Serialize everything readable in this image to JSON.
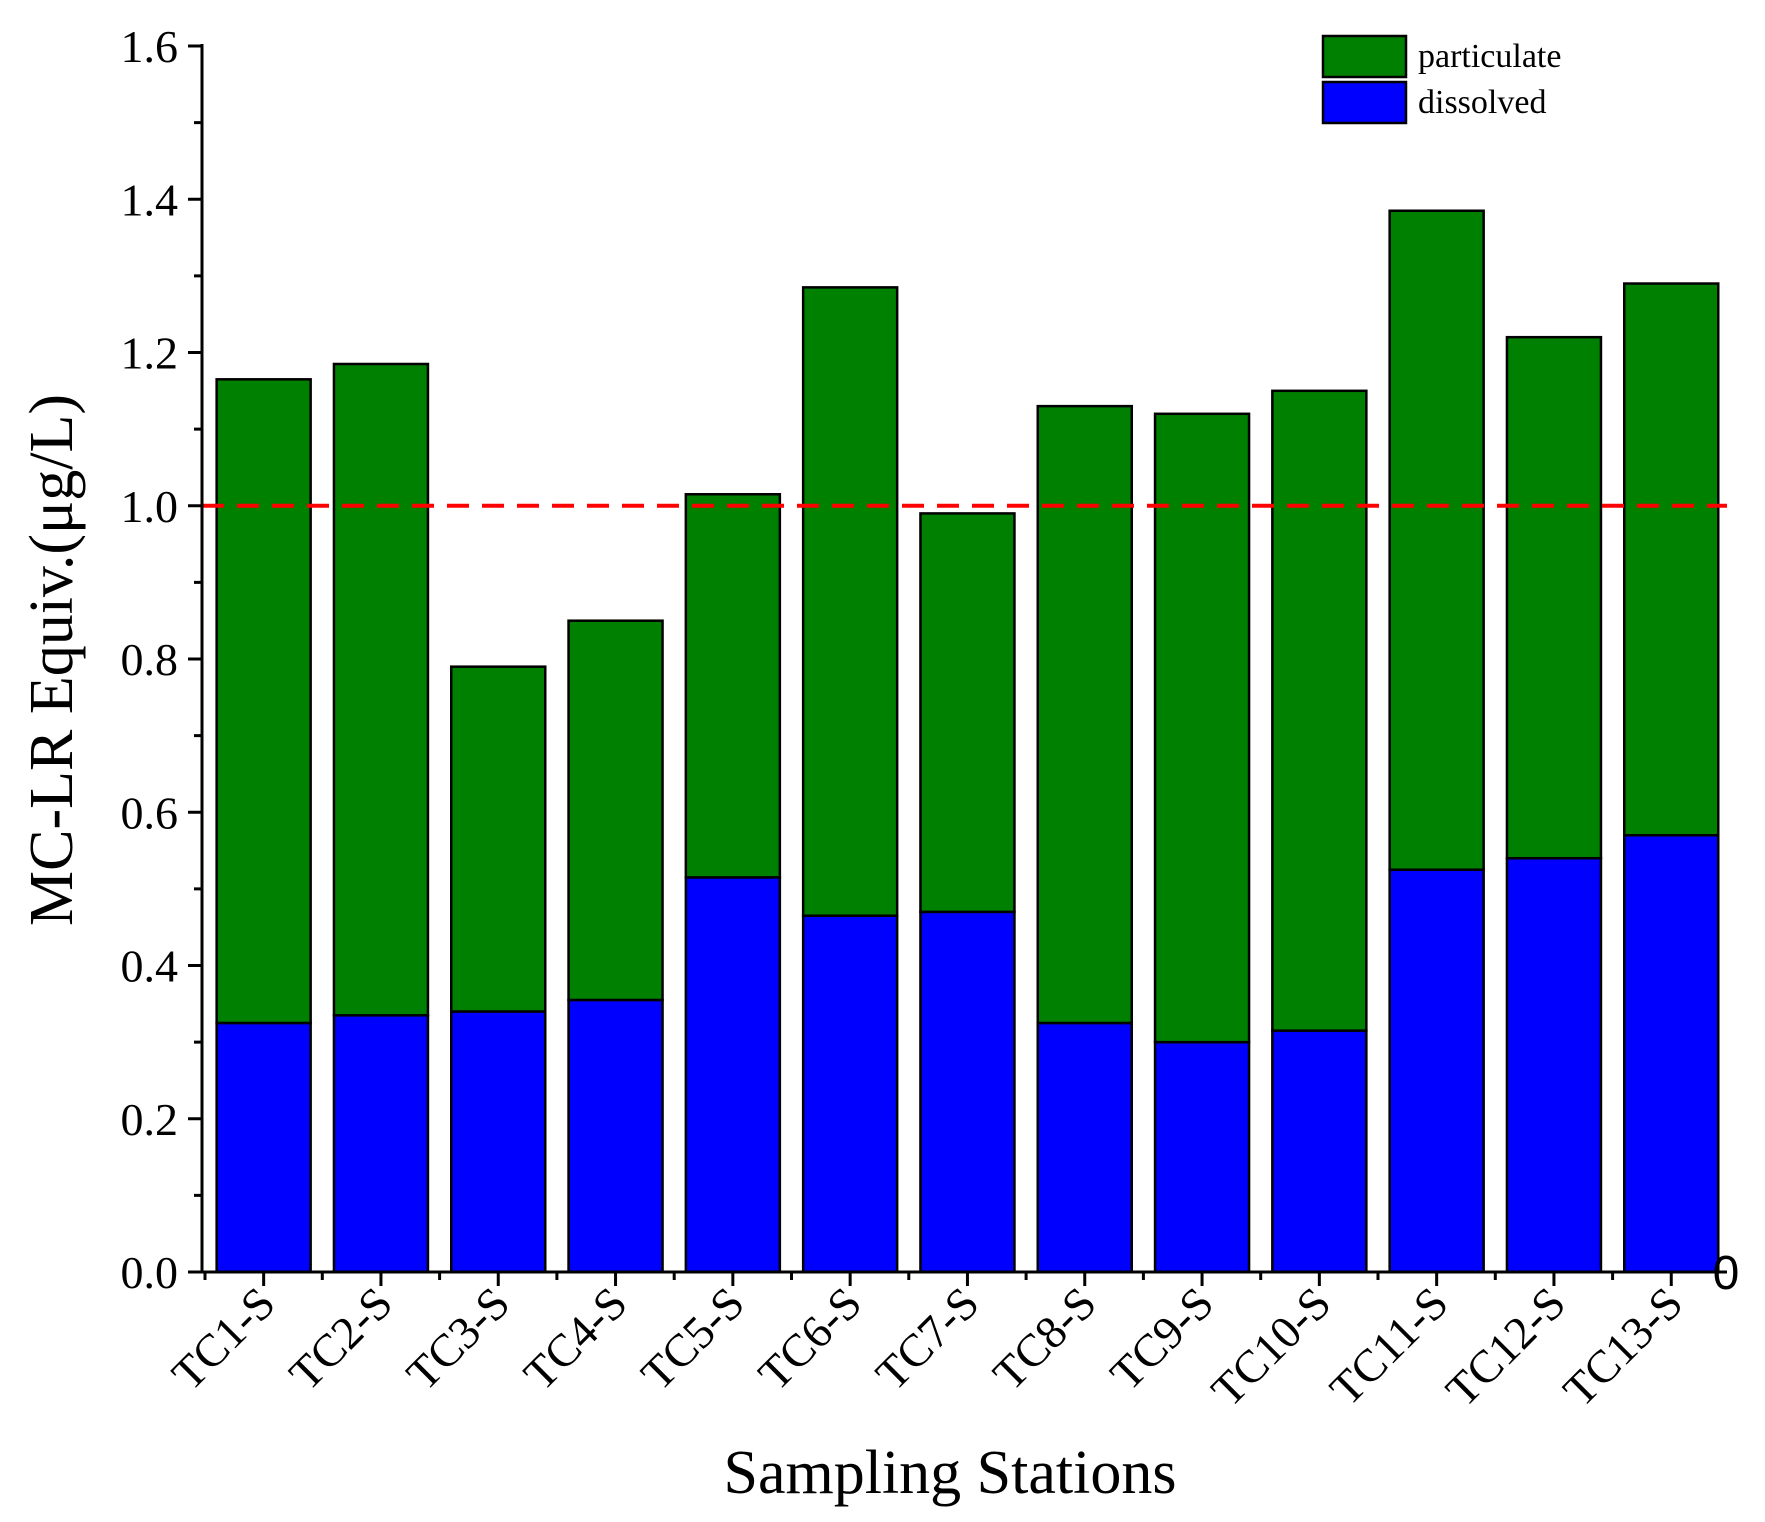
{
  "chart_data": {
    "type": "bar",
    "stacked": true,
    "categories": [
      "TC1-S",
      "TC2-S",
      "TC3-S",
      "TC4-S",
      "TC5-S",
      "TC6-S",
      "TC7-S",
      "TC8-S",
      "TC9-S",
      "TC10-S",
      "TC11-S",
      "TC12-S",
      "TC13-S"
    ],
    "series": [
      {
        "name": "dissolved",
        "color": "#0000ff",
        "values": [
          0.325,
          0.335,
          0.34,
          0.355,
          0.515,
          0.465,
          0.47,
          0.325,
          0.3,
          0.315,
          0.525,
          0.54,
          0.57
        ]
      },
      {
        "name": "particulate",
        "color": "#008000",
        "values": [
          0.84,
          0.85,
          0.45,
          0.495,
          0.5,
          0.82,
          0.52,
          0.805,
          0.82,
          0.835,
          0.86,
          0.68,
          0.72
        ]
      }
    ],
    "legend_order": [
      "particulate",
      "dissolved"
    ],
    "legend_position": "top-right",
    "reference_line": {
      "value": 1.0,
      "color": "#ff0000",
      "style": "dashed"
    },
    "xlabel": "Sampling Stations",
    "ylabel": "MC-LR Equiv.(μg/L)",
    "ylim": [
      0,
      1.6
    ],
    "yticks": [
      "0.0",
      "0.2",
      "0.4",
      "0.6",
      "0.8",
      "1.0",
      "1.2",
      "1.4",
      "1.6"
    ],
    "right_axis_label": "0",
    "grid": false
  }
}
